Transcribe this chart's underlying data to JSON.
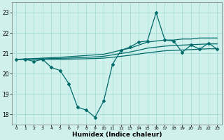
{
  "xlabel": "Humidex (Indice chaleur)",
  "bg_color": "#cff0eb",
  "line_color": "#006b6b",
  "grid_color": "#a8ddd8",
  "xlim": [
    -0.5,
    23.5
  ],
  "ylim": [
    17.5,
    23.5
  ],
  "yticks": [
    18,
    19,
    20,
    21,
    22,
    23
  ],
  "xticks": [
    0,
    1,
    2,
    3,
    4,
    5,
    6,
    7,
    8,
    9,
    10,
    11,
    12,
    13,
    14,
    15,
    16,
    17,
    18,
    19,
    20,
    21,
    22,
    23
  ],
  "x": [
    0,
    1,
    2,
    3,
    4,
    5,
    6,
    7,
    8,
    9,
    10,
    11,
    12,
    13,
    14,
    15,
    16,
    17,
    18,
    19,
    20,
    21,
    22,
    23
  ],
  "y_main": [
    20.7,
    20.7,
    20.6,
    20.7,
    20.3,
    20.15,
    19.5,
    18.35,
    18.2,
    17.85,
    18.65,
    20.45,
    21.15,
    21.3,
    21.55,
    21.6,
    23.0,
    21.65,
    21.6,
    21.05,
    21.4,
    21.2,
    21.5,
    21.2
  ],
  "y_upper": [
    20.7,
    20.72,
    20.74,
    20.76,
    20.78,
    20.8,
    20.83,
    20.86,
    20.89,
    20.92,
    20.95,
    21.05,
    21.15,
    21.25,
    21.4,
    21.55,
    21.6,
    21.65,
    21.65,
    21.7,
    21.7,
    21.75,
    21.75,
    21.75
  ],
  "y_mid": [
    20.7,
    20.71,
    20.72,
    20.73,
    20.74,
    20.75,
    20.76,
    20.78,
    20.8,
    20.82,
    20.85,
    20.92,
    20.99,
    21.06,
    21.15,
    21.25,
    21.3,
    21.35,
    21.38,
    21.4,
    21.42,
    21.44,
    21.46,
    21.46
  ],
  "y_lower": [
    20.7,
    20.7,
    20.7,
    20.7,
    20.7,
    20.7,
    20.71,
    20.72,
    20.73,
    20.74,
    20.76,
    20.8,
    20.85,
    20.9,
    20.96,
    21.02,
    21.07,
    21.12,
    21.14,
    21.16,
    21.18,
    21.2,
    21.22,
    21.22
  ]
}
